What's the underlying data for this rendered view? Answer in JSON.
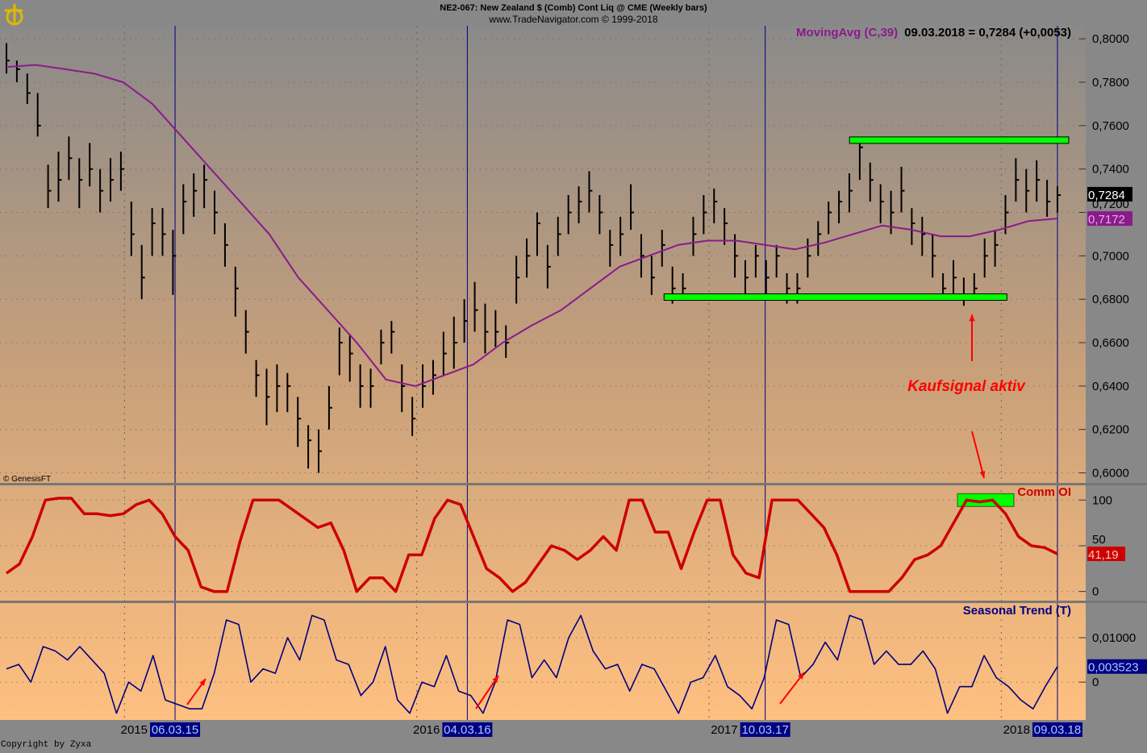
{
  "header": {
    "title": "NE2-067:  New Zealand $ (Comb) Cont Liq @ CME  (Weekly bars)",
    "subtitle": "www.TradeNavigator.com © 1999-2018"
  },
  "footer": {
    "copyright": "Copyright by Zyxa"
  },
  "colors": {
    "price_bar": "#000000",
    "moving_avg": "#8b1a8b",
    "comm_oi": "#cc0000",
    "seasonal": "#000080",
    "signal_box": "#00ff00",
    "annotation": "#ff0000",
    "marker_line": "#000080"
  },
  "chart_data": [
    {
      "type": "ohlc-bar",
      "panel": "price",
      "legend": {
        "indicator": "MovingAvg (C,39)",
        "readout": "09.03.2018 = 0,7284 (+0,0053)"
      },
      "watermark": "© GenesisFT",
      "x_range": [
        "2014-08-08",
        "2018-03-09"
      ],
      "ylim": [
        0.595,
        0.806
      ],
      "yticks": [
        "0,8000",
        "0,7800",
        "0,7600",
        "0,7400",
        "0,7200",
        "0,7000",
        "0,6800",
        "0,6600",
        "0,6400",
        "0,6200",
        "0,6000"
      ],
      "ytick_values": [
        0.8,
        0.78,
        0.76,
        0.74,
        0.72,
        0.7,
        0.68,
        0.66,
        0.64,
        0.62,
        0.6
      ],
      "last_price_label": "0,7284",
      "ma_label": "0,7172",
      "bars_hlc": [
        [
          0.798,
          0.784,
          0.79
        ],
        [
          0.79,
          0.78,
          0.786
        ],
        [
          0.784,
          0.77,
          0.775
        ],
        [
          0.775,
          0.755,
          0.76
        ],
        [
          0.742,
          0.722,
          0.73
        ],
        [
          0.748,
          0.725,
          0.735
        ],
        [
          0.755,
          0.735,
          0.745
        ],
        [
          0.745,
          0.722,
          0.735
        ],
        [
          0.752,
          0.732,
          0.74
        ],
        [
          0.74,
          0.72,
          0.73
        ],
        [
          0.745,
          0.725,
          0.735
        ],
        [
          0.748,
          0.73,
          0.74
        ],
        [
          0.725,
          0.7,
          0.71
        ],
        [
          0.705,
          0.68,
          0.69
        ],
        [
          0.722,
          0.7,
          0.715
        ],
        [
          0.722,
          0.7,
          0.71
        ],
        [
          0.712,
          0.682,
          0.7
        ],
        [
          0.733,
          0.71,
          0.725
        ],
        [
          0.738,
          0.718,
          0.73
        ],
        [
          0.742,
          0.722,
          0.735
        ],
        [
          0.73,
          0.71,
          0.72
        ],
        [
          0.715,
          0.695,
          0.705
        ],
        [
          0.695,
          0.672,
          0.685
        ],
        [
          0.675,
          0.655,
          0.665
        ],
        [
          0.652,
          0.635,
          0.645
        ],
        [
          0.648,
          0.622,
          0.635
        ],
        [
          0.65,
          0.628,
          0.64
        ],
        [
          0.646,
          0.628,
          0.64
        ],
        [
          0.635,
          0.612,
          0.625
        ],
        [
          0.622,
          0.602,
          0.615
        ],
        [
          0.62,
          0.6,
          0.61
        ],
        [
          0.64,
          0.62,
          0.63
        ],
        [
          0.667,
          0.645,
          0.66
        ],
        [
          0.664,
          0.642,
          0.655
        ],
        [
          0.65,
          0.63,
          0.64
        ],
        [
          0.648,
          0.63,
          0.64
        ],
        [
          0.666,
          0.65,
          0.66
        ],
        [
          0.67,
          0.655,
          0.665
        ],
        [
          0.65,
          0.628,
          0.64
        ],
        [
          0.635,
          0.617,
          0.625
        ],
        [
          0.65,
          0.63,
          0.64
        ],
        [
          0.652,
          0.636,
          0.645
        ],
        [
          0.665,
          0.645,
          0.655
        ],
        [
          0.672,
          0.648,
          0.66
        ],
        [
          0.68,
          0.66,
          0.67
        ],
        [
          0.688,
          0.665,
          0.675
        ],
        [
          0.678,
          0.655,
          0.665
        ],
        [
          0.675,
          0.658,
          0.665
        ],
        [
          0.668,
          0.653,
          0.66
        ],
        [
          0.7,
          0.678,
          0.69
        ],
        [
          0.708,
          0.69,
          0.7
        ],
        [
          0.72,
          0.7,
          0.715
        ],
        [
          0.705,
          0.685,
          0.695
        ],
        [
          0.718,
          0.7,
          0.71
        ],
        [
          0.728,
          0.71,
          0.72
        ],
        [
          0.732,
          0.715,
          0.725
        ],
        [
          0.739,
          0.72,
          0.73
        ],
        [
          0.728,
          0.71,
          0.72
        ],
        [
          0.712,
          0.695,
          0.705
        ],
        [
          0.718,
          0.7,
          0.71
        ],
        [
          0.733,
          0.712,
          0.72
        ],
        [
          0.71,
          0.69,
          0.7
        ],
        [
          0.7,
          0.682,
          0.69
        ],
        [
          0.712,
          0.695,
          0.705
        ],
        [
          0.695,
          0.678,
          0.685
        ],
        [
          0.692,
          0.68,
          0.685
        ],
        [
          0.718,
          0.7,
          0.71
        ],
        [
          0.728,
          0.71,
          0.72
        ],
        [
          0.731,
          0.715,
          0.725
        ],
        [
          0.722,
          0.705,
          0.715
        ],
        [
          0.71,
          0.69,
          0.7
        ],
        [
          0.698,
          0.682,
          0.69
        ],
        [
          0.705,
          0.69,
          0.7
        ],
        [
          0.698,
          0.682,
          0.69
        ],
        [
          0.705,
          0.69,
          0.7
        ],
        [
          0.692,
          0.678,
          0.685
        ],
        [
          0.692,
          0.678,
          0.685
        ],
        [
          0.708,
          0.69,
          0.7
        ],
        [
          0.716,
          0.7,
          0.71
        ],
        [
          0.725,
          0.71,
          0.72
        ],
        [
          0.73,
          0.715,
          0.725
        ],
        [
          0.738,
          0.72,
          0.73
        ],
        [
          0.753,
          0.735,
          0.75
        ],
        [
          0.743,
          0.725,
          0.735
        ],
        [
          0.733,
          0.715,
          0.725
        ],
        [
          0.73,
          0.71,
          0.72
        ],
        [
          0.741,
          0.72,
          0.73
        ],
        [
          0.722,
          0.705,
          0.715
        ],
        [
          0.718,
          0.7,
          0.71
        ],
        [
          0.71,
          0.69,
          0.7
        ],
        [
          0.692,
          0.68,
          0.685
        ],
        [
          0.698,
          0.682,
          0.69
        ],
        [
          0.69,
          0.677,
          0.68
        ],
        [
          0.692,
          0.68,
          0.685
        ],
        [
          0.708,
          0.69,
          0.7
        ],
        [
          0.712,
          0.695,
          0.705
        ],
        [
          0.728,
          0.71,
          0.72
        ],
        [
          0.745,
          0.725,
          0.735
        ],
        [
          0.74,
          0.72,
          0.73
        ],
        [
          0.744,
          0.725,
          0.735
        ],
        [
          0.735,
          0.718,
          0.725
        ],
        [
          0.732,
          0.72,
          0.728
        ]
      ],
      "moving_avg": [
        0.787,
        0.788,
        0.786,
        0.784,
        0.78,
        0.77,
        0.755,
        0.74,
        0.725,
        0.71,
        0.69,
        0.675,
        0.66,
        0.643,
        0.64,
        0.645,
        0.65,
        0.66,
        0.668,
        0.675,
        0.685,
        0.695,
        0.7,
        0.705,
        0.707,
        0.707,
        0.705,
        0.703,
        0.706,
        0.71,
        0.714,
        0.712,
        0.709,
        0.709,
        0.712,
        0.716,
        0.7172
      ],
      "levels": [
        {
          "value": 0.7533,
          "from": "2017-06-23",
          "to": "2018-03-23"
        },
        {
          "value": 0.681,
          "from": "2016-11-04",
          "to": "2018-01-05"
        }
      ],
      "annotation": "Kaufsignal aktiv"
    },
    {
      "type": "line",
      "panel": "comm_oi",
      "name": "Comm OI",
      "ylim": [
        -10,
        117
      ],
      "yticks": [
        "100",
        "50",
        "0"
      ],
      "ytick_values": [
        100,
        50,
        0
      ],
      "last_label": "41,19",
      "values": [
        20,
        30,
        60,
        100,
        102,
        102,
        85,
        85,
        83,
        85,
        95,
        100,
        85,
        60,
        45,
        5,
        0,
        0,
        55,
        100,
        100,
        100,
        90,
        80,
        70,
        75,
        45,
        0,
        15,
        15,
        0,
        40,
        40,
        80,
        100,
        95,
        60,
        25,
        15,
        0,
        10,
        30,
        50,
        45,
        35,
        45,
        60,
        45,
        100,
        100,
        65,
        65,
        25,
        65,
        100,
        100,
        40,
        20,
        15,
        100,
        100,
        100,
        85,
        70,
        40,
        0,
        0,
        0,
        0,
        15,
        35,
        40,
        50,
        75,
        100,
        98,
        100,
        85,
        60,
        50,
        48,
        41.19
      ]
    },
    {
      "type": "line",
      "panel": "seasonal",
      "name": "Seasonal Trend (T)",
      "ylim": [
        -0.0085,
        0.0178
      ],
      "yticks": [
        "0,01000",
        "0"
      ],
      "ytick_values": [
        0.01,
        0
      ],
      "last_label": "0,003523",
      "values": [
        0.003,
        0.004,
        0,
        0.008,
        0.007,
        0.005,
        0.008,
        0.005,
        0.002,
        -0.007,
        0,
        -0.002,
        0.006,
        -0.004,
        -0.005,
        -0.006,
        -0.006,
        0.002,
        0.014,
        0.013,
        0,
        0.003,
        0.002,
        0.01,
        0.005,
        0.015,
        0.014,
        0.005,
        0.004,
        -0.003,
        0,
        0.008,
        -0.004,
        -0.007,
        0,
        -0.001,
        0.006,
        -0.002,
        -0.003,
        -0.007,
        0,
        0.014,
        0.013,
        0.001,
        0.005,
        0.001,
        0.01,
        0.015,
        0.007,
        0.003,
        0.004,
        -0.002,
        0.004,
        0.003,
        -0.002,
        -0.007,
        0,
        0.001,
        0.006,
        -0.001,
        -0.003,
        -0.006,
        0.001,
        0.014,
        0.013,
        0.001,
        0.004,
        0.009,
        0.005,
        0.015,
        0.014,
        0.004,
        0.007,
        0.004,
        0.004,
        0.007,
        0.003,
        -0.007,
        -0.001,
        -0.001,
        0.006,
        0.001,
        -0.001,
        -0.004,
        -0.006,
        -0.001,
        0.003523
      ]
    }
  ],
  "x_axis": {
    "years": [
      {
        "label": "2015",
        "date": "2015-01-02"
      },
      {
        "label": "2016",
        "date": "2016-01-01"
      },
      {
        "label": "2017",
        "date": "2016-12-30"
      },
      {
        "label": "2018",
        "date": "2017-12-29"
      }
    ],
    "markers": [
      {
        "label": "06.03.15",
        "date": "2015-03-06"
      },
      {
        "label": "04.03.16",
        "date": "2016-03-04"
      },
      {
        "label": "10.03.17",
        "date": "2017-03-10"
      },
      {
        "label": "09.03.18",
        "date": "2018-03-09"
      }
    ]
  }
}
